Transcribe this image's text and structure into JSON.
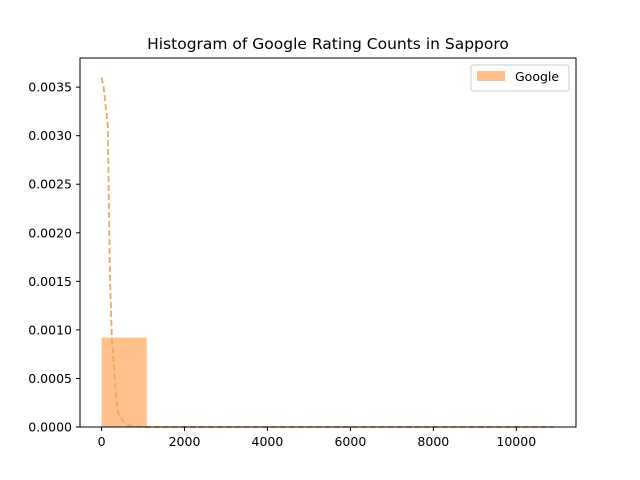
{
  "chart_data": {
    "type": "bar",
    "title": "Histogram of Google Rating Counts in Sapporo",
    "xlabel": "",
    "ylabel": "",
    "xlim": [
      -520,
      11440
    ],
    "ylim": [
      0,
      0.0038
    ],
    "x_ticks": [
      0,
      2000,
      4000,
      6000,
      8000,
      10000
    ],
    "y_ticks": [
      0.0,
      0.0005,
      0.001,
      0.0015,
      0.002,
      0.0025,
      0.003,
      0.0035
    ],
    "x_tick_labels": [
      "0",
      "2000",
      "4000",
      "6000",
      "8000",
      "10000"
    ],
    "y_tick_labels": [
      "0.0000",
      "0.0005",
      "0.0010",
      "0.0015",
      "0.0020",
      "0.0025",
      "0.0030",
      "0.0035"
    ],
    "legend": {
      "position": "top-right",
      "entries": [
        "Google"
      ]
    },
    "series": [
      {
        "name": "Google",
        "color": "#ffc08c",
        "bins": [
          {
            "start": 0,
            "end": 1090,
            "value": 0.00092
          },
          {
            "start": 1090,
            "end": 2180,
            "value": 0.0
          },
          {
            "start": 2180,
            "end": 3270,
            "value": 0.0
          },
          {
            "start": 3270,
            "end": 4360,
            "value": 0.0
          },
          {
            "start": 4360,
            "end": 5450,
            "value": 0.0
          },
          {
            "start": 5450,
            "end": 6540,
            "value": 0.0
          },
          {
            "start": 6540,
            "end": 7630,
            "value": 0.0
          },
          {
            "start": 7630,
            "end": 8720,
            "value": 0.0
          },
          {
            "start": 8720,
            "end": 9810,
            "value": 0.0
          },
          {
            "start": 9810,
            "end": 10900,
            "value": 0.0
          }
        ]
      }
    ],
    "density_curve": {
      "color": "#f5a55c",
      "style": "dashed",
      "x": [
        0,
        50,
        100,
        150,
        200,
        250,
        300,
        350,
        400,
        500,
        600,
        700,
        800,
        1000,
        1500,
        2000,
        3000,
        5000,
        7000,
        9000,
        10900
      ],
      "y": [
        0.0036,
        0.0035,
        0.0033,
        0.0031,
        0.0016,
        0.0009,
        0.0006,
        0.0003,
        0.00015,
        7e-05,
        3e-05,
        1e-05,
        4e-06,
        5e-07,
        0,
        0,
        0,
        0,
        0,
        0,
        0
      ]
    }
  }
}
